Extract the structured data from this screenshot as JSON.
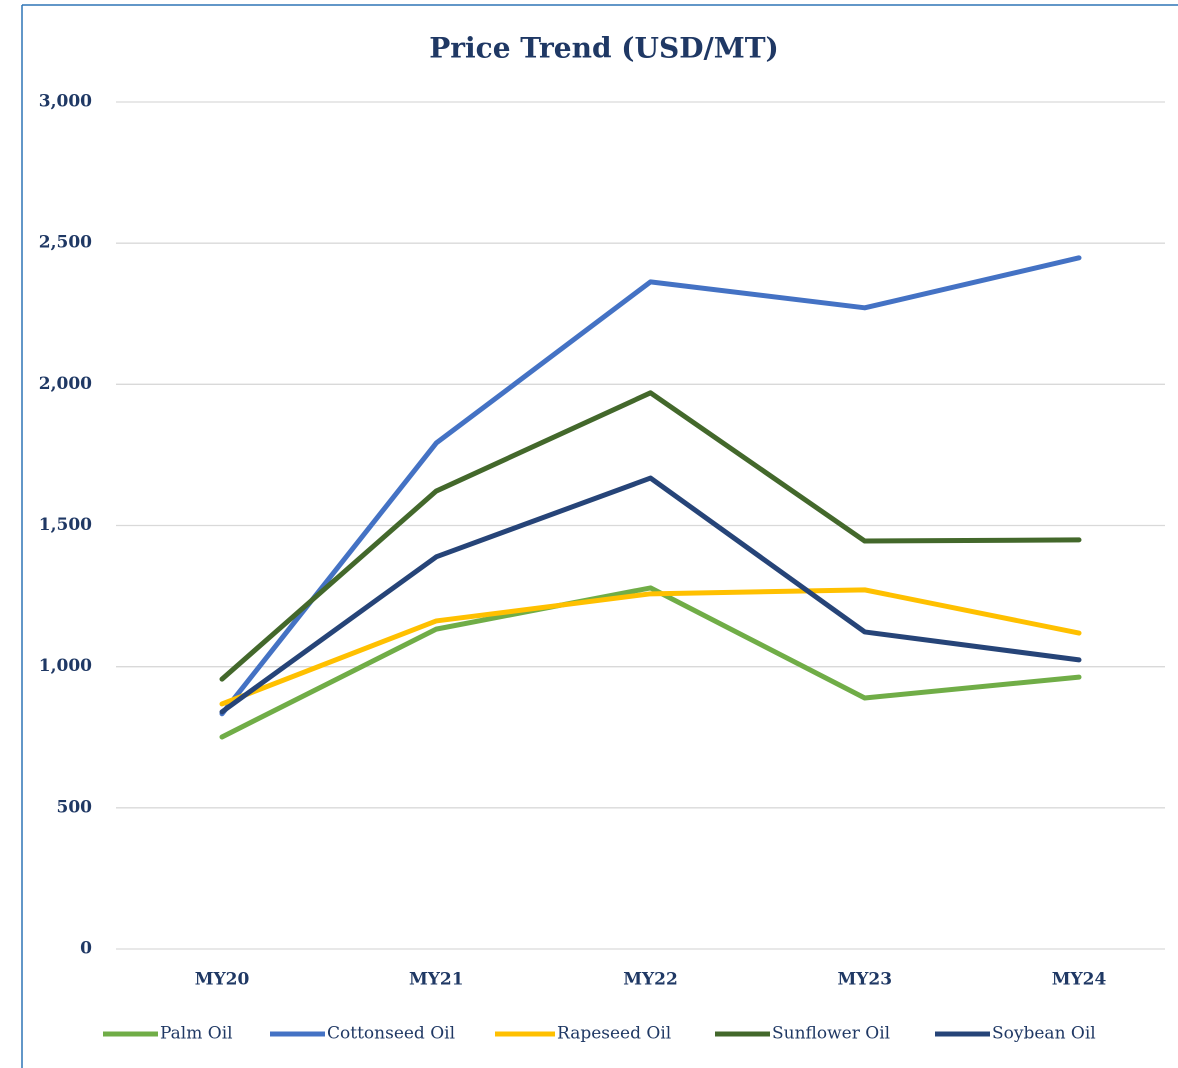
{
  "chart_data": {
    "type": "line",
    "title": "Price Trend (USD/MT)",
    "categories": [
      "MY20",
      "MY21",
      "MY22",
      "MY23",
      "MY24"
    ],
    "series": [
      {
        "name": "Palm Oil",
        "color": "#70ad47",
        "values": [
          751,
          1133,
          1279,
          889,
          963
        ]
      },
      {
        "name": "Cottonseed Oil",
        "color": "#4472c4",
        "values": [
          833,
          1792,
          2363,
          2271,
          2448
        ]
      },
      {
        "name": "Rapeseed Oil",
        "color": "#ffc000",
        "values": [
          868,
          1162,
          1258,
          1272,
          1119
        ]
      },
      {
        "name": "Sunflower Oil",
        "color": "#43682b",
        "values": [
          956,
          1622,
          1970,
          1445,
          1449
        ]
      },
      {
        "name": "Soybean Oil",
        "color": "#264478",
        "values": [
          840,
          1389,
          1668,
          1123,
          1024
        ]
      }
    ],
    "ylim": [
      0,
      3000
    ],
    "yticks": [
      0,
      500,
      {
        "value": 1000,
        "label": "1,000"
      },
      {
        "value": 1500,
        "label": "1,500"
      },
      {
        "value": 2000,
        "label": "2,000"
      },
      {
        "value": 2500,
        "label": "2,500"
      },
      {
        "value": 3000,
        "label": "3,000"
      }
    ],
    "grid": true,
    "legend": "bottom"
  }
}
